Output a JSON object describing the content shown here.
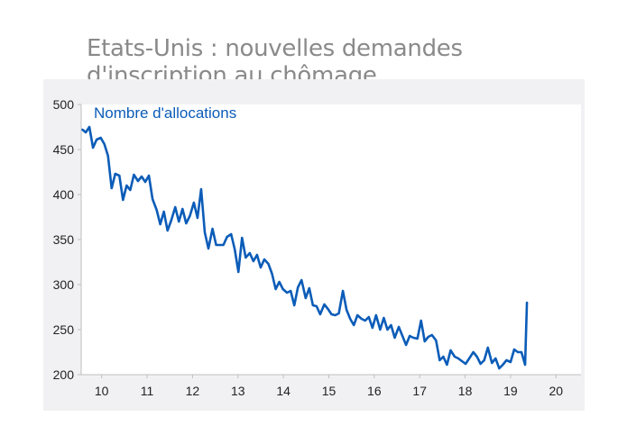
{
  "title": "Etats-Unis : nouvelles demandes d'inscription au chômage",
  "chart_data": {
    "type": "line",
    "title": "Etats-Unis : nouvelles demandes d'inscription au chômage",
    "xlabel": "",
    "ylabel": "",
    "series": [
      {
        "name": "Nombre d'allocations",
        "color": "#0b5cb8",
        "points": [
          [
            2009.58,
            472
          ],
          [
            2009.65,
            469
          ],
          [
            2009.73,
            475
          ],
          [
            2009.81,
            452
          ],
          [
            2009.89,
            461
          ],
          [
            2009.98,
            463
          ],
          [
            2010.06,
            456
          ],
          [
            2010.14,
            443
          ],
          [
            2010.22,
            407
          ],
          [
            2010.3,
            423
          ],
          [
            2010.39,
            421
          ],
          [
            2010.47,
            394
          ],
          [
            2010.55,
            410
          ],
          [
            2010.63,
            405
          ],
          [
            2010.71,
            422
          ],
          [
            2010.8,
            415
          ],
          [
            2010.88,
            420
          ],
          [
            2010.96,
            414
          ],
          [
            2011.04,
            421
          ],
          [
            2011.12,
            395
          ],
          [
            2011.21,
            383
          ],
          [
            2011.29,
            367
          ],
          [
            2011.37,
            381
          ],
          [
            2011.45,
            360
          ],
          [
            2011.53,
            371
          ],
          [
            2011.62,
            386
          ],
          [
            2011.7,
            370
          ],
          [
            2011.78,
            384
          ],
          [
            2011.86,
            368
          ],
          [
            2011.94,
            376
          ],
          [
            2012.03,
            391
          ],
          [
            2012.11,
            374
          ],
          [
            2012.19,
            406
          ],
          [
            2012.27,
            358
          ],
          [
            2012.35,
            340
          ],
          [
            2012.44,
            362
          ],
          [
            2012.52,
            344
          ],
          [
            2012.6,
            344
          ],
          [
            2012.68,
            344
          ],
          [
            2012.76,
            353
          ],
          [
            2012.85,
            356
          ],
          [
            2012.93,
            339
          ],
          [
            2013.01,
            314
          ],
          [
            2013.09,
            352
          ],
          [
            2013.17,
            330
          ],
          [
            2013.26,
            335
          ],
          [
            2013.34,
            326
          ],
          [
            2013.42,
            333
          ],
          [
            2013.5,
            319
          ],
          [
            2013.58,
            328
          ],
          [
            2013.67,
            323
          ],
          [
            2013.75,
            312
          ],
          [
            2013.83,
            295
          ],
          [
            2013.91,
            303
          ],
          [
            2013.99,
            295
          ],
          [
            2014.08,
            291
          ],
          [
            2014.16,
            293
          ],
          [
            2014.24,
            277
          ],
          [
            2014.32,
            297
          ],
          [
            2014.4,
            305
          ],
          [
            2014.49,
            285
          ],
          [
            2014.57,
            296
          ],
          [
            2014.65,
            277
          ],
          [
            2014.73,
            276
          ],
          [
            2014.81,
            267
          ],
          [
            2014.9,
            278
          ],
          [
            2014.98,
            273
          ],
          [
            2015.06,
            267
          ],
          [
            2015.14,
            266
          ],
          [
            2015.22,
            268
          ],
          [
            2015.31,
            293
          ],
          [
            2015.39,
            272
          ],
          [
            2015.47,
            262
          ],
          [
            2015.55,
            255
          ],
          [
            2015.63,
            266
          ],
          [
            2015.72,
            262
          ],
          [
            2015.8,
            260
          ],
          [
            2015.88,
            264
          ],
          [
            2015.96,
            252
          ],
          [
            2016.04,
            266
          ],
          [
            2016.13,
            250
          ],
          [
            2016.21,
            263
          ],
          [
            2016.29,
            250
          ],
          [
            2016.37,
            255
          ],
          [
            2016.45,
            241
          ],
          [
            2016.54,
            253
          ],
          [
            2016.62,
            243
          ],
          [
            2016.7,
            233
          ],
          [
            2016.78,
            243
          ],
          [
            2016.86,
            241
          ],
          [
            2016.95,
            240
          ],
          [
            2017.03,
            260
          ],
          [
            2017.11,
            237
          ],
          [
            2017.19,
            242
          ],
          [
            2017.27,
            244
          ],
          [
            2017.36,
            238
          ],
          [
            2017.44,
            216
          ],
          [
            2017.52,
            220
          ],
          [
            2017.6,
            211
          ],
          [
            2017.68,
            227
          ],
          [
            2017.77,
            220
          ],
          [
            2017.85,
            218
          ],
          [
            2017.93,
            215
          ],
          [
            2018.01,
            212
          ],
          [
            2018.09,
            218
          ],
          [
            2018.18,
            225
          ],
          [
            2018.26,
            220
          ],
          [
            2018.34,
            212
          ],
          [
            2018.42,
            216
          ],
          [
            2018.5,
            230
          ],
          [
            2018.59,
            213
          ],
          [
            2018.67,
            218
          ],
          [
            2018.75,
            207
          ],
          [
            2018.83,
            211
          ],
          [
            2018.91,
            216
          ],
          [
            2019.0,
            214
          ],
          [
            2019.08,
            228
          ],
          [
            2019.16,
            225
          ],
          [
            2019.24,
            225
          ],
          [
            2019.32,
            211
          ],
          [
            2019.36,
            280
          ]
        ]
      }
    ],
    "xlim": [
      2009.55,
      2020.55
    ],
    "ylim": [
      200,
      500
    ],
    "yticks": [
      200,
      250,
      300,
      350,
      400,
      450,
      500
    ],
    "xticks": [
      {
        "value": 2010.0,
        "label": "10"
      },
      {
        "value": 2011.0,
        "label": "11"
      },
      {
        "value": 2012.0,
        "label": "12"
      },
      {
        "value": 2013.0,
        "label": "13"
      },
      {
        "value": 2014.0,
        "label": "14"
      },
      {
        "value": 2015.0,
        "label": "15"
      },
      {
        "value": 2016.0,
        "label": "16"
      },
      {
        "value": 2017.0,
        "label": "17"
      },
      {
        "value": 2018.0,
        "label": "18"
      },
      {
        "value": 2019.0,
        "label": "19"
      },
      {
        "value": 2020.0,
        "label": "20"
      }
    ],
    "grid": false,
    "legend": "top-left",
    "colors": {
      "line": "#0b5cb8",
      "legend_text": "#0b5cb8",
      "title": "#8a8a8a",
      "panel_background": "#f1f1f3",
      "plot_background": "#ffffff",
      "axis": "#bfbfbf",
      "tick_label": "#222222"
    }
  }
}
